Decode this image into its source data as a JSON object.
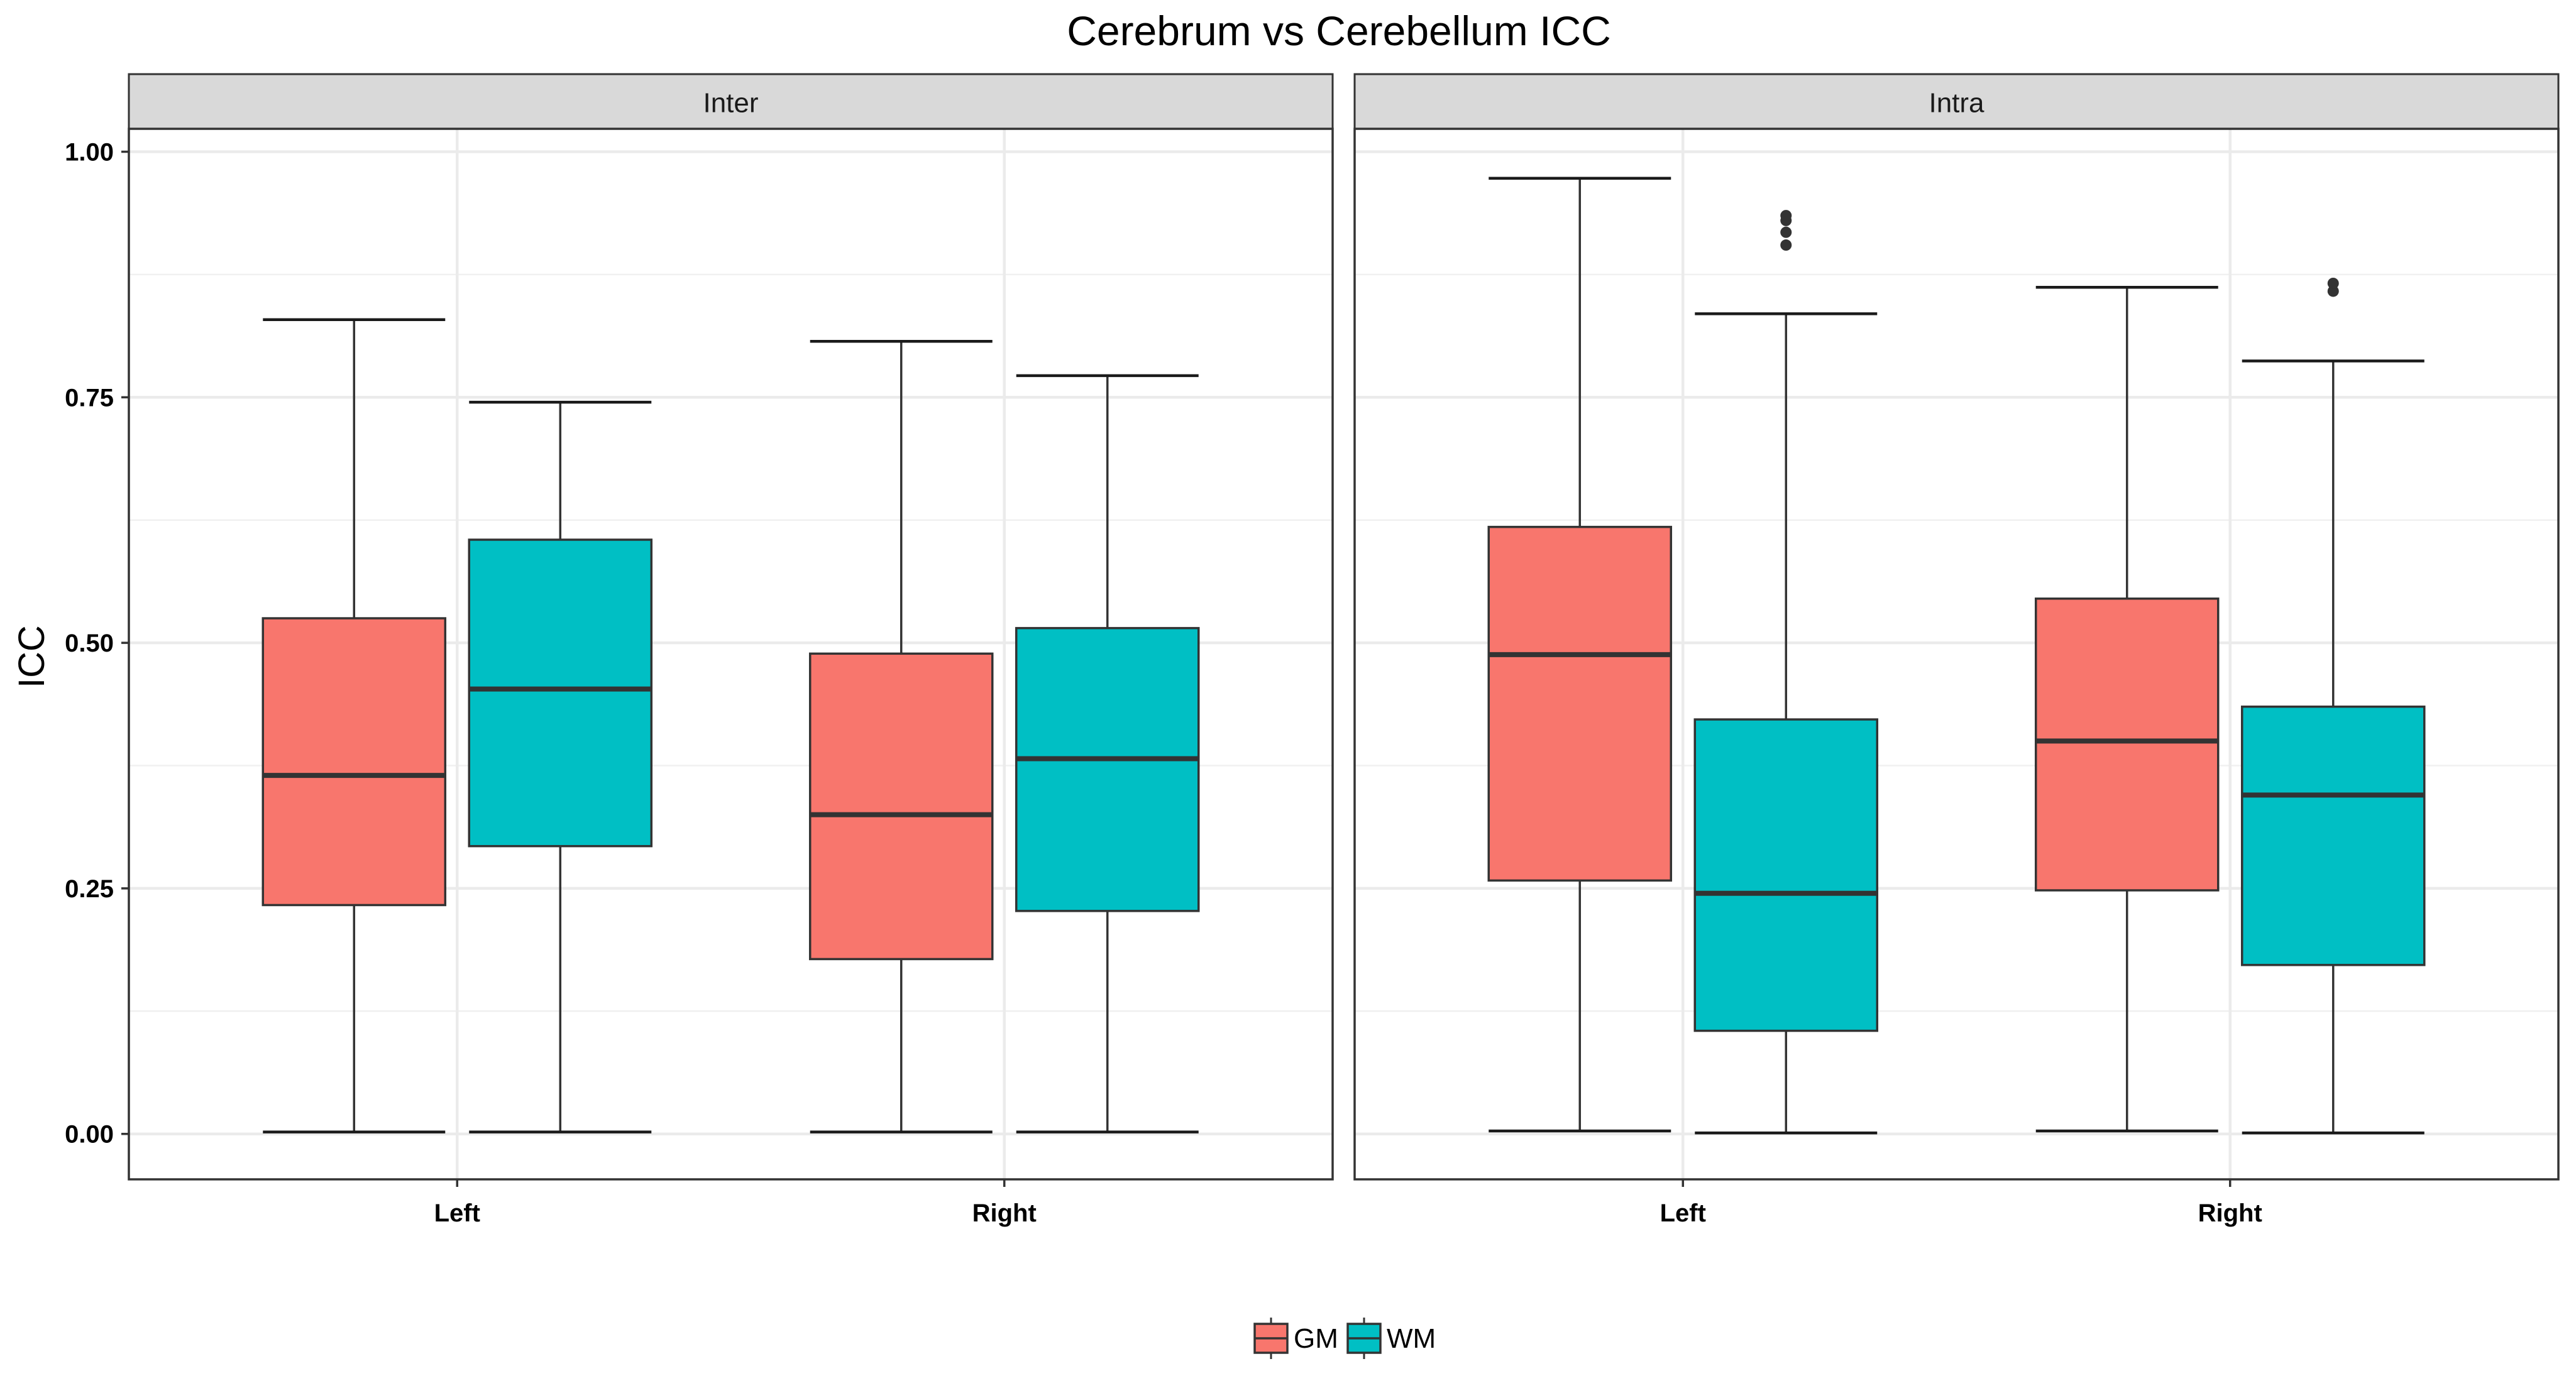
{
  "chart_data": {
    "type": "box",
    "title": "Cerebrum vs Cerebellum ICC",
    "xlabel": "",
    "ylabel": "ICC",
    "ylim": [
      -0.05,
      1.025
    ],
    "yticks": [
      0.0,
      0.25,
      0.5,
      0.75,
      1.0
    ],
    "ytick_labels": [
      "0.00",
      "0.25",
      "0.50",
      "0.75",
      "1.00"
    ],
    "grid": true,
    "legend_position": "bottom",
    "colors": {
      "GM": "#F8766D",
      "WM": "#00BFC4"
    },
    "categories": [
      "Left",
      "Right"
    ],
    "groups": [
      "GM",
      "WM"
    ],
    "legend": [
      {
        "name": "GM",
        "label": "GM",
        "color": "#F8766D"
      },
      {
        "name": "WM",
        "label": "WM",
        "color": "#00BFC4"
      }
    ],
    "facets": [
      {
        "label": "Inter",
        "boxes": [
          {
            "category": "Left",
            "group": "GM",
            "min": 0.002,
            "q1": 0.233,
            "median": 0.365,
            "q3": 0.525,
            "max": 0.829,
            "outliers": []
          },
          {
            "category": "Left",
            "group": "WM",
            "min": 0.002,
            "q1": 0.293,
            "median": 0.453,
            "q3": 0.605,
            "max": 0.745,
            "outliers": []
          },
          {
            "category": "Right",
            "group": "GM",
            "min": 0.002,
            "q1": 0.178,
            "median": 0.325,
            "q3": 0.489,
            "max": 0.807,
            "outliers": []
          },
          {
            "category": "Right",
            "group": "WM",
            "min": 0.002,
            "q1": 0.227,
            "median": 0.382,
            "q3": 0.515,
            "max": 0.772,
            "outliers": []
          }
        ]
      },
      {
        "label": "Intra",
        "boxes": [
          {
            "category": "Left",
            "group": "GM",
            "min": 0.003,
            "q1": 0.258,
            "median": 0.488,
            "q3": 0.618,
            "max": 0.973,
            "outliers": []
          },
          {
            "category": "Left",
            "group": "WM",
            "min": 0.001,
            "q1": 0.105,
            "median": 0.245,
            "q3": 0.422,
            "max": 0.835,
            "outliers": [
              0.905,
              0.918,
              0.93,
              0.935
            ]
          },
          {
            "category": "Right",
            "group": "GM",
            "min": 0.003,
            "q1": 0.248,
            "median": 0.4,
            "q3": 0.545,
            "max": 0.862,
            "outliers": []
          },
          {
            "category": "Right",
            "group": "WM",
            "min": 0.001,
            "q1": 0.172,
            "median": 0.345,
            "q3": 0.435,
            "max": 0.787,
            "outliers": [
              0.858,
              0.866
            ]
          }
        ]
      }
    ]
  }
}
